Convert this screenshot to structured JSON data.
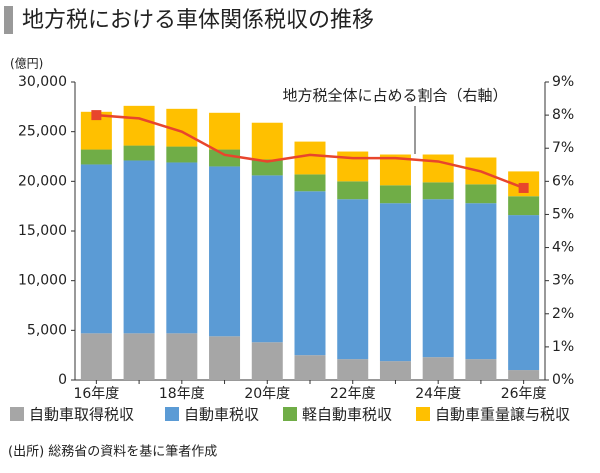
{
  "chart_data": {
    "type": "bar",
    "stacked": true,
    "title": "地方税における車体関係税収の推移",
    "y_unit_label": "(億円)",
    "annotation": "地方税全体に占める割合（右軸）",
    "source": "(出所) 総務省の資料を基に筆者作成",
    "categories": [
      "16年度",
      null,
      "18年度",
      null,
      "20年度",
      null,
      "22年度",
      null,
      "24年度",
      null,
      "26年度"
    ],
    "series": [
      {
        "name": "自動車取得税収",
        "color": "#a6a6a6",
        "values": [
          4700,
          4700,
          4700,
          4400,
          3800,
          2500,
          2100,
          1900,
          2300,
          2100,
          1000
        ]
      },
      {
        "name": "自動車税収",
        "color": "#5b9bd5",
        "values": [
          17000,
          17400,
          17200,
          17100,
          16800,
          16500,
          16100,
          15900,
          15900,
          15700,
          15600
        ]
      },
      {
        "name": "軽自動車税収",
        "color": "#70ad47",
        "values": [
          1500,
          1500,
          1600,
          1700,
          1600,
          1700,
          1800,
          1800,
          1700,
          1900,
          1900
        ]
      },
      {
        "name": "自動車重量譲与税収",
        "color": "#ffc000",
        "values": [
          3800,
          4000,
          3800,
          3700,
          3700,
          3300,
          3000,
          3100,
          2800,
          2700,
          2500
        ]
      },
      {
        "name": "地方税全体に占める割合",
        "type": "line",
        "axis": "y2",
        "color": "#e8452c",
        "values": [
          8.0,
          7.9,
          7.5,
          6.8,
          6.6,
          6.8,
          6.7,
          6.7,
          6.6,
          6.3,
          5.8
        ]
      }
    ],
    "ylim": [
      0,
      30000
    ],
    "yticks": [
      0,
      {
        "value": 5000,
        "label": "5,000"
      },
      {
        "value": 10000,
        "label": "10,000"
      },
      {
        "value": 15000,
        "label": "15,000"
      },
      {
        "value": 20000,
        "label": "20,000"
      },
      {
        "value": 25000,
        "label": "25,000"
      },
      {
        "value": 30000,
        "label": "30,000"
      }
    ],
    "y2lim": [
      0,
      9
    ],
    "y2ticks": [
      {
        "value": 0,
        "label": "0%"
      },
      {
        "value": 1,
        "label": "1%"
      },
      {
        "value": 2,
        "label": "2%"
      },
      {
        "value": 3,
        "label": "3%"
      },
      {
        "value": 4,
        "label": "4%"
      },
      {
        "value": 5,
        "label": "5%"
      },
      {
        "value": 6,
        "label": "6%"
      },
      {
        "value": 7,
        "label": "7%"
      },
      {
        "value": 8,
        "label": "8%"
      },
      {
        "value": 9,
        "label": "9%"
      }
    ]
  }
}
